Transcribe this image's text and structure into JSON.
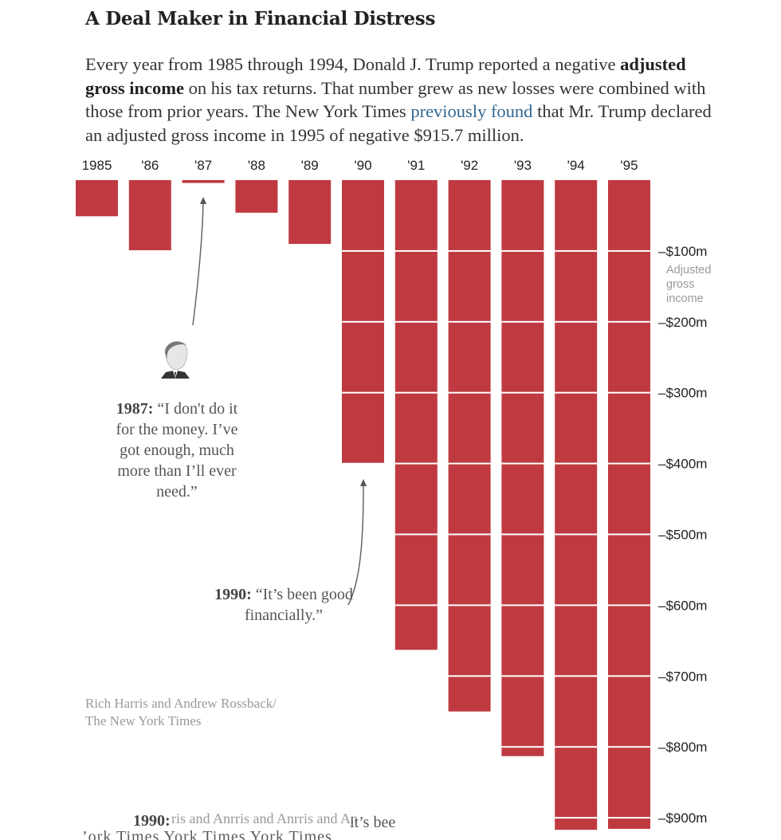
{
  "header": {
    "title": "A Deal Maker in Financial Distress"
  },
  "intro": {
    "part1": "Every year from 1985 through 1994, Donald J. Trump reported a negative ",
    "bold": "adjusted gross income",
    "part2": " on his tax returns. That number grew as new losses were combined with those from prior years. The New York Times ",
    "link": "previously found",
    "part3": " that Mr. Trump declared an adjusted gross income in 1995 of negative $915.7 million."
  },
  "annotations": {
    "quote1987": {
      "year": "1987:",
      "text": " “I don't do it for the money. I’ve got enough, much more than I’ll ever need.”"
    },
    "quote1990": {
      "year": "1990:",
      "text": " “It’s been good financially.”"
    },
    "headshot": "donald-trump-headshot"
  },
  "credit": {
    "line1": "Rich Harris and Andrew Rossback/",
    "line2": "The New York Times"
  },
  "ghost_text": {
    "year": "1990:",
    "overlap": "ris and Anrris and Anrris and An",
    "tail": "it’s bee",
    "bottom": "’ork Times York Times York Times"
  },
  "colors": {
    "bar": "#bf3a40",
    "gridline": "#ffffff",
    "link": "#326891"
  },
  "chart_data": {
    "type": "bar",
    "title": "A Deal Maker in Financial Distress",
    "categories": [
      "1985",
      "'86",
      "'87",
      "'88",
      "'89",
      "'90",
      "'91",
      "'92",
      "'93",
      "'94",
      "'95"
    ],
    "values": [
      -51,
      -99,
      -4,
      -46,
      -90,
      -399,
      -663,
      -750,
      -813,
      -917,
      -915.7
    ],
    "units": "millions of dollars",
    "ylabel": "Adjusted gross income",
    "ylim": [
      -920,
      0
    ],
    "yticks": [
      -100,
      -200,
      -300,
      -400,
      -500,
      -600,
      -700,
      -800,
      -900
    ],
    "ytick_labels": [
      "–$100m",
      "–$200m",
      "–$300m",
      "–$400m",
      "–$500m",
      "–$600m",
      "–$700m",
      "–$800m",
      "–$900m"
    ],
    "axis_position": "right",
    "x_axis_position": "top",
    "grid": true,
    "legend": "none"
  }
}
